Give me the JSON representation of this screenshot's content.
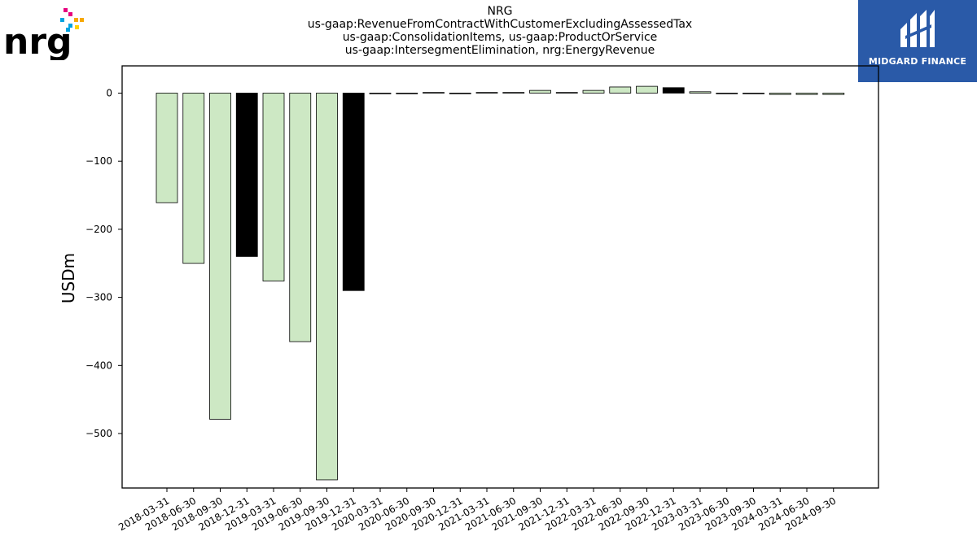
{
  "header": {
    "title_lines": [
      "NRG",
      "us-gaap:RevenueFromContractWithCustomerExcludingAssessedTax",
      "us-gaap:ConsolidationItems, us-gaap:ProductOrService",
      "us-gaap:IntersegmentElimination, nrg:EnergyRevenue"
    ]
  },
  "logos": {
    "nrg_text": "nrg",
    "midgard_text": "MIDGARD FINANCE",
    "midgard_color": "#2a5aa8"
  },
  "chart_data": {
    "type": "bar",
    "ylabel": "USDm",
    "xlabel": "",
    "ylim": [
      -580,
      40
    ],
    "yticks": [
      0,
      -100,
      -200,
      -300,
      -400,
      -500
    ],
    "grid": false,
    "colors": {
      "default": "#cde8c4",
      "year_end": "#000000",
      "edge": "#000000"
    },
    "categories": [
      "2018-03-31",
      "2018-06-30",
      "2018-09-30",
      "2018-12-31",
      "2019-03-31",
      "2019-06-30",
      "2019-09-30",
      "2019-12-31",
      "2020-03-31",
      "2020-06-30",
      "2020-09-30",
      "2020-12-31",
      "2021-03-31",
      "2021-06-30",
      "2021-09-30",
      "2021-12-31",
      "2022-03-31",
      "2022-06-30",
      "2022-09-30",
      "2022-12-31",
      "2023-03-31",
      "2023-06-30",
      "2023-09-30",
      "2024-03-31",
      "2024-06-30",
      "2024-09-30"
    ],
    "values": [
      -161,
      -250,
      -479,
      -240,
      -276,
      -365,
      -568,
      -290,
      -1,
      -1,
      1,
      0,
      1,
      1,
      4,
      1,
      4,
      9,
      10,
      8,
      2,
      -1,
      -1,
      -2,
      -2,
      -2
    ],
    "highlight": [
      false,
      false,
      false,
      true,
      false,
      false,
      false,
      true,
      false,
      false,
      false,
      false,
      false,
      false,
      false,
      false,
      false,
      false,
      false,
      true,
      false,
      false,
      false,
      false,
      false,
      false
    ]
  }
}
